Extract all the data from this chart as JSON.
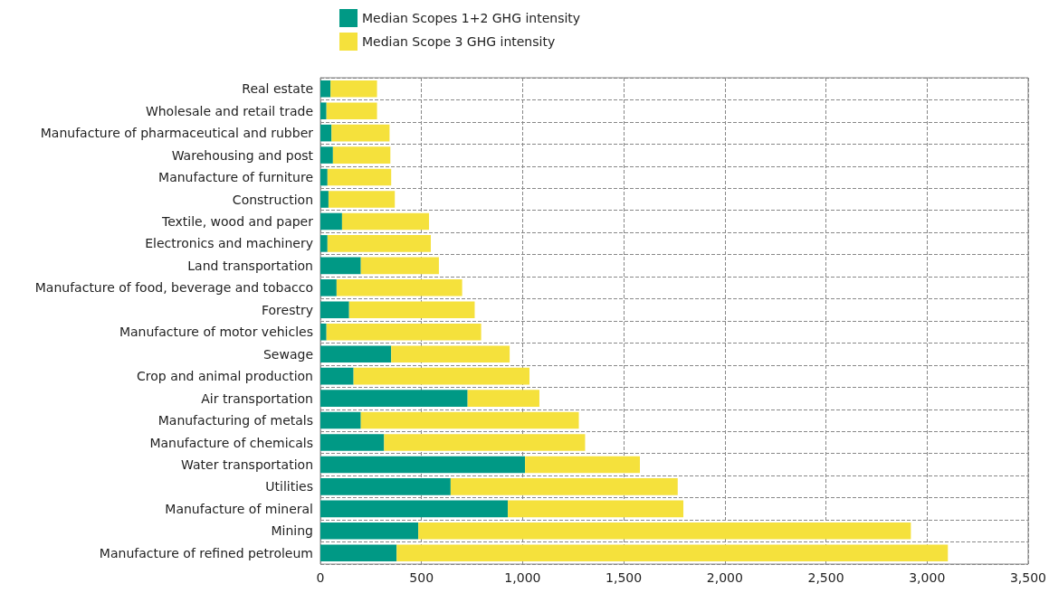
{
  "chart_data": {
    "type": "bar",
    "orientation": "horizontal",
    "stacked": true,
    "categories": [
      "Real estate",
      "Wholesale and retail trade",
      "Manufacture of pharmaceutical and rubber",
      "Warehousing and post",
      "Manufacture of furniture",
      "Construction",
      "Textile, wood and paper",
      "Electronics and machinery",
      "Land transportation",
      "Manufacture of food, beverage and tobacco",
      "Forestry",
      "Manufacture of motor vehicles",
      "Sewage",
      "Crop and animal production",
      "Air transportation",
      "Manufacturing of metals",
      "Manufacture of chemicals",
      "Water transportation",
      "Utilities",
      "Manufacture of mineral",
      "Mining",
      "Manufacture of refined petroleum"
    ],
    "series": [
      {
        "name": "Median Scopes 1+2 GHG intensity",
        "color": "#009985",
        "values": [
          50,
          30,
          55,
          62,
          35,
          40,
          107,
          35,
          200,
          80,
          142,
          30,
          350,
          164,
          728,
          200,
          315,
          1012,
          644,
          927,
          484,
          377
        ]
      },
      {
        "name": "Median Scope 3 GHG intensity",
        "color": "#f5e13c",
        "values": [
          230,
          250,
          287,
          284,
          315,
          328,
          430,
          511,
          386,
          621,
          621,
          765,
          586,
          870,
          355,
          1078,
          994,
          568,
          1123,
          868,
          2436,
          2726
        ]
      }
    ],
    "xlim": [
      0,
      3500
    ],
    "xticks": [
      0,
      500,
      {
        "value": 1000,
        "label": "1,000"
      },
      {
        "value": 1500,
        "label": "1,500"
      },
      {
        "value": 2000,
        "label": "2,000"
      },
      {
        "value": 2500,
        "label": "2,500"
      },
      {
        "value": 3000,
        "label": "3,000"
      },
      {
        "value": 3500,
        "label": "3,500"
      }
    ],
    "grid": true,
    "legend": "top"
  }
}
